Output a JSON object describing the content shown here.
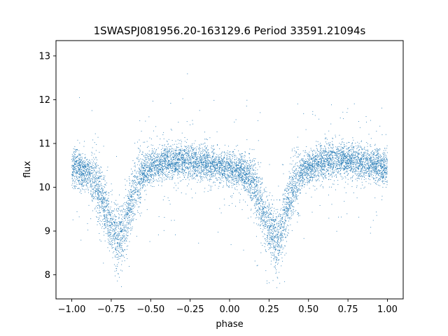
{
  "chart_data": {
    "type": "scatter",
    "title": "1SWASPJ081956.20-163129.6 Period 33591.21094s",
    "xlabel": "phase",
    "ylabel": "flux",
    "xlim": [
      -1.1,
      1.1
    ],
    "ylim": [
      7.45,
      13.35
    ],
    "x_ticks": [
      -1.0,
      -0.75,
      -0.5,
      -0.25,
      0.0,
      0.25,
      0.5,
      0.75,
      1.0
    ],
    "x_tick_labels": [
      "−1.00",
      "−0.75",
      "−0.50",
      "−0.25",
      "0.00",
      "0.25",
      "0.50",
      "0.75",
      "1.00"
    ],
    "y_ticks": [
      8,
      9,
      10,
      11,
      12,
      13
    ],
    "y_tick_labels": [
      "8",
      "9",
      "10",
      "11",
      "12",
      "13"
    ],
    "grid": false,
    "legend": "none",
    "marker_color": "#1f77b4",
    "light_curve_profile": {
      "phase": [
        -1.0,
        -0.95,
        -0.9,
        -0.85,
        -0.8,
        -0.75,
        -0.72,
        -0.7,
        -0.68,
        -0.65,
        -0.6,
        -0.55,
        -0.5,
        -0.45,
        -0.4,
        -0.35,
        -0.3,
        -0.25,
        -0.2,
        -0.15,
        -0.1,
        -0.05,
        0.0,
        0.05,
        0.1,
        0.15,
        0.2,
        0.25,
        0.28,
        0.3,
        0.32,
        0.35,
        0.4,
        0.45,
        0.5,
        0.55,
        0.6,
        0.65,
        0.7,
        0.75,
        0.8,
        0.85,
        0.9,
        0.95,
        1.0
      ],
      "median_flux": [
        10.45,
        10.4,
        10.3,
        10.1,
        9.6,
        9.1,
        8.9,
        8.85,
        8.95,
        9.3,
        9.95,
        10.3,
        10.45,
        10.52,
        10.57,
        10.6,
        10.62,
        10.6,
        10.58,
        10.55,
        10.5,
        10.45,
        10.42,
        10.4,
        10.3,
        10.1,
        9.6,
        9.1,
        8.9,
        8.85,
        8.95,
        9.3,
        9.95,
        10.3,
        10.45,
        10.52,
        10.57,
        10.6,
        10.62,
        10.6,
        10.58,
        10.55,
        10.5,
        10.48,
        10.45
      ]
    },
    "n_points": 9000,
    "outlier_range": [
      7.7,
      13.1
    ]
  }
}
